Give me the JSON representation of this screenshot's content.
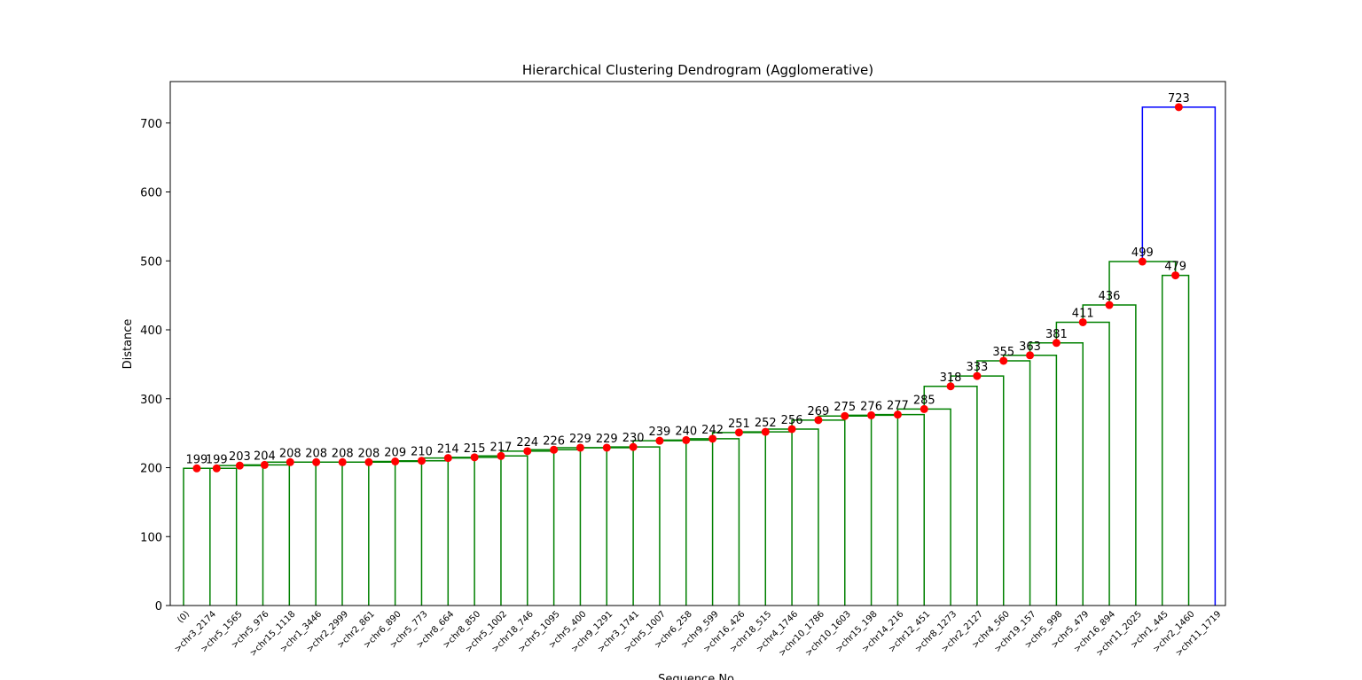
{
  "chart_data": {
    "type": "dendrogram",
    "title": "Hierarchical Clustering Dendrogram (Agglomerative)",
    "xlabel": "Sequence No.",
    "ylabel": "Distance",
    "ylim": [
      0,
      760
    ],
    "yticks": [
      0,
      100,
      200,
      300,
      400,
      500,
      600,
      700
    ],
    "leaves": [
      "(0)",
      ">chr3_2174",
      ">chr5_1565",
      ">chr5_976",
      ">chr15_1118",
      ">chr1_3446",
      ">chr2_2999",
      ">chr2_861",
      ">chr6_890",
      ">chr5_773",
      ">chr8_664",
      ">chr8_850",
      ">chr5_1002",
      ">chr18_746",
      ">chr5_1095",
      ">chr5_400",
      ">chr9_1291",
      ">chr3_1741",
      ">chr5_1007",
      ">chr6_258",
      ">chr9_599",
      ">chr16_426",
      ">chr18_515",
      ">chr4_1746",
      ">chr10_1786",
      ">chr10_1603",
      ">chr15_198",
      ">chr14_216",
      ">chr12_451",
      ">chr8_1273",
      ">chr2_2127",
      ">chr4_560",
      ">chr19_157",
      ">chr5_998",
      ">chr5_479",
      ">chr16_894",
      ">chr11_2025",
      ">chr1_445",
      ">chr2_1460",
      ">chr11_1719"
    ],
    "merges": [
      {
        "id": 1,
        "left": "L0",
        "right": "L1",
        "distance": 199,
        "label": "199"
      },
      {
        "id": 2,
        "left": "M1",
        "right": "L2",
        "distance": 199,
        "label": "199"
      },
      {
        "id": 3,
        "left": "M2",
        "right": "L3",
        "distance": 203,
        "label": "203"
      },
      {
        "id": 4,
        "left": "M3",
        "right": "L4",
        "distance": 204,
        "label": "204"
      },
      {
        "id": 5,
        "left": "M4",
        "right": "L5",
        "distance": 208,
        "label": "208"
      },
      {
        "id": 6,
        "left": "M5",
        "right": "L6",
        "distance": 208,
        "label": "208"
      },
      {
        "id": 7,
        "left": "M6",
        "right": "L7",
        "distance": 208,
        "label": "208"
      },
      {
        "id": 8,
        "left": "M7",
        "right": "L8",
        "distance": 208,
        "label": "208"
      },
      {
        "id": 9,
        "left": "M8",
        "right": "L9",
        "distance": 209,
        "label": "209"
      },
      {
        "id": 10,
        "left": "M9",
        "right": "L10",
        "distance": 210,
        "label": "210"
      },
      {
        "id": 11,
        "left": "M10",
        "right": "L11",
        "distance": 214,
        "label": "214"
      },
      {
        "id": 12,
        "left": "M11",
        "right": "L12",
        "distance": 215,
        "label": "215"
      },
      {
        "id": 13,
        "left": "M12",
        "right": "L13",
        "distance": 217,
        "label": "217"
      },
      {
        "id": 14,
        "left": "M13",
        "right": "L14",
        "distance": 224,
        "label": "224"
      },
      {
        "id": 15,
        "left": "M14",
        "right": "L15",
        "distance": 226,
        "label": "226"
      },
      {
        "id": 16,
        "left": "M15",
        "right": "L16",
        "distance": 229,
        "label": "229"
      },
      {
        "id": 17,
        "left": "M16",
        "right": "L17",
        "distance": 229,
        "label": "229"
      },
      {
        "id": 18,
        "left": "M17",
        "right": "L18",
        "distance": 230,
        "label": "230"
      },
      {
        "id": 19,
        "left": "M18",
        "right": "L19",
        "distance": 239,
        "label": "239"
      },
      {
        "id": 20,
        "left": "M19",
        "right": "L20",
        "distance": 240,
        "label": "240"
      },
      {
        "id": 21,
        "left": "M20",
        "right": "L21",
        "distance": 242,
        "label": "242"
      },
      {
        "id": 22,
        "left": "M21",
        "right": "L22",
        "distance": 251,
        "label": "251"
      },
      {
        "id": 23,
        "left": "M22",
        "right": "L23",
        "distance": 252,
        "label": "252"
      },
      {
        "id": 24,
        "left": "M23",
        "right": "L24",
        "distance": 256,
        "label": "256"
      },
      {
        "id": 25,
        "left": "M24",
        "right": "L25",
        "distance": 269,
        "label": "269"
      },
      {
        "id": 26,
        "left": "M25",
        "right": "L26",
        "distance": 275,
        "label": "275"
      },
      {
        "id": 27,
        "left": "M26",
        "right": "L27",
        "distance": 276,
        "label": "276"
      },
      {
        "id": 28,
        "left": "M27",
        "right": "L28",
        "distance": 277,
        "label": "277"
      },
      {
        "id": 29,
        "left": "M28",
        "right": "L29",
        "distance": 285,
        "label": "285"
      },
      {
        "id": 30,
        "left": "M29",
        "right": "L30",
        "distance": 318,
        "label": "318"
      },
      {
        "id": 31,
        "left": "M30",
        "right": "L31",
        "distance": 333,
        "label": "333"
      },
      {
        "id": 32,
        "left": "M31",
        "right": "L32",
        "distance": 355,
        "label": "355"
      },
      {
        "id": 33,
        "left": "M32",
        "right": "L33",
        "distance": 363,
        "label": "363"
      },
      {
        "id": 34,
        "left": "M33",
        "right": "L34",
        "distance": 381,
        "label": "381"
      },
      {
        "id": 35,
        "left": "M34",
        "right": "L35",
        "distance": 411,
        "label": "411"
      },
      {
        "id": 36,
        "left": "M35",
        "right": "L36",
        "distance": 436,
        "label": "436"
      },
      {
        "id": 37,
        "left": "L37",
        "right": "L38",
        "distance": 479,
        "label": "479"
      },
      {
        "id": 38,
        "left": "M36",
        "right": "M37",
        "distance": 499,
        "label": "499"
      },
      {
        "id": 39,
        "left": "M38",
        "right": "L39",
        "distance": 723,
        "label": "723"
      }
    ],
    "colors": {
      "cluster": "#008000",
      "root": "#0000ff",
      "node_marker": "#ff0000",
      "axis": "#000000"
    },
    "grid": false
  }
}
